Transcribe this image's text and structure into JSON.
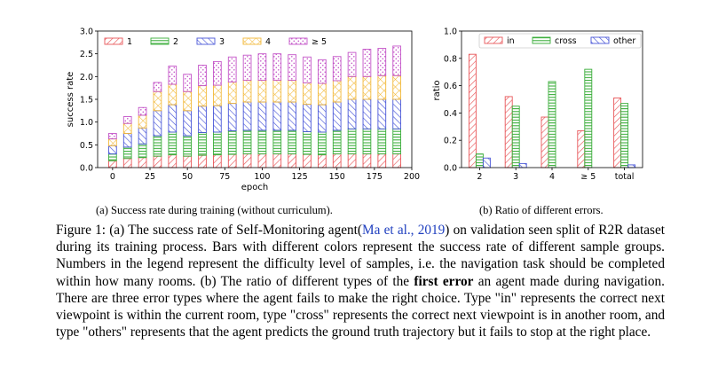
{
  "chart_data": [
    {
      "type": "bar",
      "stacked": true,
      "xlabel": "epoch",
      "ylabel": "success rate",
      "ylim": [
        0,
        3.0
      ],
      "xlim": [
        -10,
        200
      ],
      "xticks": [
        0,
        25,
        50,
        75,
        100,
        125,
        150,
        175,
        200
      ],
      "yticks": [
        "0.0",
        "0.5",
        "1.0",
        "1.5",
        "2.0",
        "2.5",
        "3.0"
      ],
      "epochs": [
        0,
        10,
        20,
        30,
        40,
        50,
        60,
        70,
        80,
        90,
        100,
        110,
        120,
        130,
        140,
        150,
        160,
        170,
        180,
        190
      ],
      "series": [
        {
          "name": "1",
          "color": "#e8575a",
          "hatch": "diag",
          "values": [
            0.15,
            0.2,
            0.22,
            0.25,
            0.28,
            0.25,
            0.27,
            0.28,
            0.29,
            0.3,
            0.3,
            0.3,
            0.3,
            0.29,
            0.28,
            0.3,
            0.3,
            0.3,
            0.3,
            0.3
          ]
        },
        {
          "name": "2",
          "color": "#3cae3c",
          "hatch": "horiz",
          "values": [
            0.15,
            0.25,
            0.3,
            0.45,
            0.5,
            0.45,
            0.5,
            0.5,
            0.52,
            0.52,
            0.52,
            0.52,
            0.52,
            0.5,
            0.5,
            0.52,
            0.55,
            0.55,
            0.55,
            0.55
          ]
        },
        {
          "name": "3",
          "color": "#4a57d8",
          "hatch": "back",
          "values": [
            0.18,
            0.3,
            0.35,
            0.55,
            0.6,
            0.55,
            0.58,
            0.58,
            0.6,
            0.62,
            0.62,
            0.62,
            0.62,
            0.6,
            0.6,
            0.62,
            0.65,
            0.65,
            0.65,
            0.65
          ]
        },
        {
          "name": "4",
          "color": "#f2b93b",
          "hatch": "cross",
          "values": [
            0.15,
            0.22,
            0.28,
            0.42,
            0.45,
            0.42,
            0.45,
            0.45,
            0.47,
            0.48,
            0.48,
            0.48,
            0.48,
            0.47,
            0.47,
            0.47,
            0.5,
            0.5,
            0.52,
            0.52
          ]
        },
        {
          "name": "≥ 5",
          "color": "#c455c8",
          "hatch": "dots",
          "values": [
            0.12,
            0.15,
            0.17,
            0.2,
            0.4,
            0.38,
            0.45,
            0.52,
            0.55,
            0.55,
            0.58,
            0.58,
            0.56,
            0.57,
            0.52,
            0.53,
            0.53,
            0.6,
            0.6,
            0.65
          ]
        }
      ],
      "legend_position": "top"
    },
    {
      "type": "bar",
      "grouped": true,
      "ylabel": "ratio",
      "ylim": [
        0,
        1.0
      ],
      "yticks": [
        "0.0",
        "0.2",
        "0.4",
        "0.6",
        "0.8",
        "1.0"
      ],
      "categories": [
        "2",
        "3",
        "4",
        "≥ 5",
        "total"
      ],
      "series": [
        {
          "name": "in",
          "color": "#e8575a",
          "hatch": "diag",
          "values": [
            0.83,
            0.52,
            0.37,
            0.27,
            0.51
          ]
        },
        {
          "name": "cross",
          "color": "#3cae3c",
          "hatch": "horiz",
          "values": [
            0.1,
            0.45,
            0.63,
            0.72,
            0.47
          ]
        },
        {
          "name": "other",
          "color": "#4a57d8",
          "hatch": "back",
          "values": [
            0.07,
            0.03,
            0.0,
            0.0,
            0.02
          ]
        }
      ],
      "legend_position": "top-right"
    }
  ],
  "subcaption_a": "(a) Success rate during training (without curriculum).",
  "subcaption_b": "(b) Ratio of different errors.",
  "caption": {
    "p1": "Figure 1: (a) The success rate of Self-Monitoring agent(",
    "cite": "Ma et al., 2019",
    "p2": ") on validation seen split of R2R dataset during its training process. Bars with different colors represent the success rate of different sample groups. Numbers in the legend represent the difficulty level of samples, i.e. the navigation task should be completed within how many rooms. (b) The ratio of different types of the ",
    "bold": "first error",
    "p3": " an agent made during navigation. There are three error types where the agent fails to make the right choice. Type \"in\" represents the correct next viewpoint is within the current room, type \"cross\" represents the correct next viewpoint is in another room, and type \"others\" represents that the agent predicts the ground truth trajectory but it fails to stop at the right place."
  }
}
